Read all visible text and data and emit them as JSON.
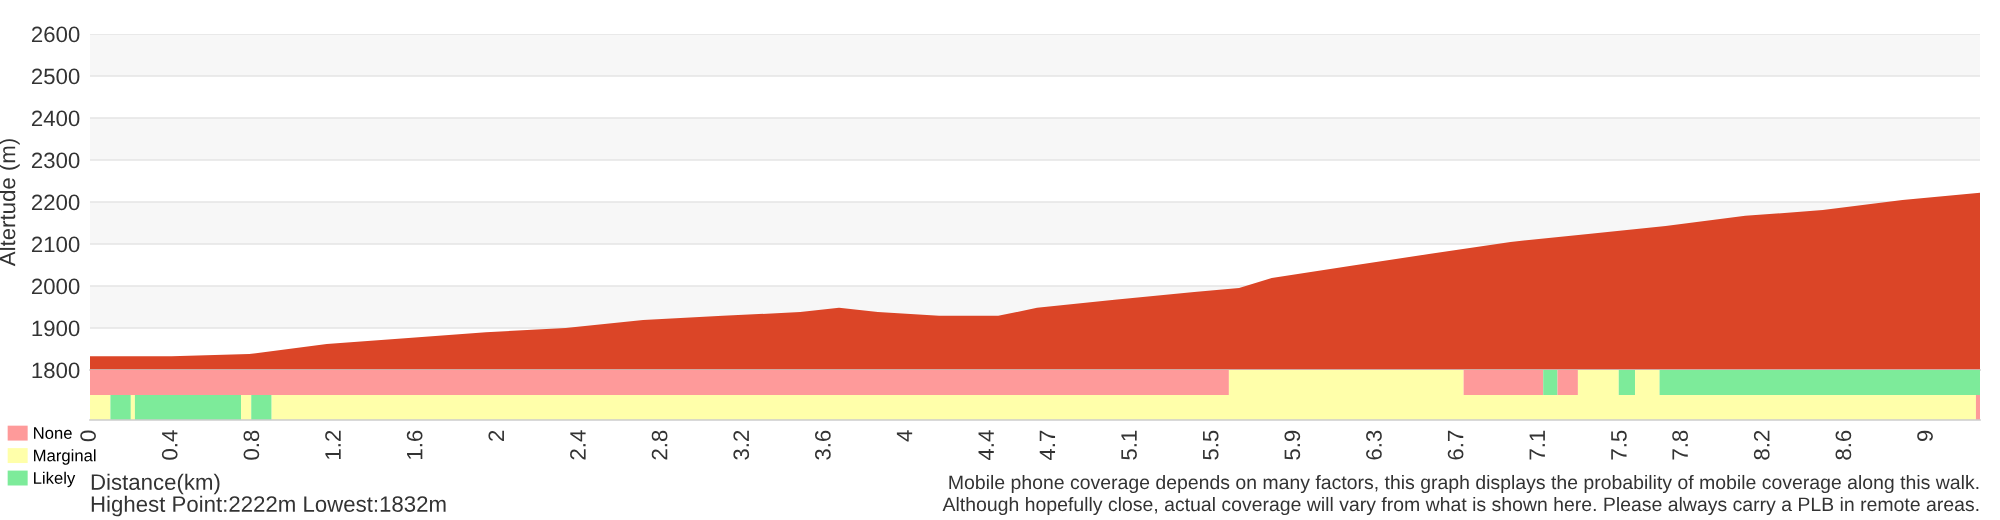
{
  "chart_data": [
    {
      "type": "area",
      "ylabel": "Altertude (m)",
      "grid": "y",
      "tick_labels": "y",
      "x": [
        0,
        0.4,
        0.78,
        1.16,
        1.56,
        1.94,
        2.33,
        2.71,
        3.1,
        3.48,
        3.67,
        3.86,
        4.16,
        4.45,
        4.64,
        5.02,
        5.41,
        5.63,
        5.79,
        6.18,
        6.56,
        6.96,
        7.34,
        7.72,
        8.11,
        8.49,
        8.88,
        9.26
      ],
      "series": [
        {
          "color": "#db4527",
          "values": [
            1833,
            1833,
            1838,
            1862,
            1876,
            1890,
            1900,
            1919,
            1929,
            1938,
            1948,
            1938,
            1929,
            1929,
            1948,
            1967,
            1986,
            1995,
            2019,
            2048,
            2076,
            2105,
            2124,
            2143,
            2167,
            2181,
            2205,
            2222
          ]
        }
      ],
      "xlim": [
        0,
        9.26
      ],
      "ylim": [
        1800,
        2600
      ],
      "yticks": [
        1800,
        1900,
        2000,
        2100,
        2200,
        2300,
        2400,
        2500,
        2600
      ]
    },
    {
      "type": "bar",
      "orientation": "horizontal",
      "stacked": true,
      "categories": [
        null,
        null
      ],
      "xlabel": "Distance(km)",
      "legend": "bottom left",
      "tick_labels": "x",
      "xlim": [
        0,
        9.26
      ],
      "xticks": [
        0,
        0.4,
        0.8,
        1.2,
        1.6,
        2,
        2.4,
        2.8,
        3.2,
        3.6,
        4,
        4.4,
        4.7,
        5.1,
        5.5,
        5.9,
        6.3,
        6.7,
        7.1,
        7.5,
        7.8,
        8.2,
        8.6,
        9
      ],
      "series": [
        {
          "name": "None",
          "color": "#fe9a9a",
          "values": [
            5.58,
            null
          ]
        },
        {
          "name": "Marginal",
          "color": "#ffffaa",
          "values": [
            1.15,
            null
          ]
        },
        {
          "color": "#fe9a9a",
          "values": [
            0.39,
            null
          ]
        },
        {
          "name": "Likely",
          "color": "#7deb9a",
          "values": [
            0.07,
            null
          ]
        },
        {
          "color": "#fe9a9a",
          "values": [
            0.1,
            null
          ]
        },
        {
          "color": "#ffffaa",
          "values": [
            0.2,
            null
          ]
        },
        {
          "color": "#7deb9a",
          "values": [
            0.08,
            null
          ]
        },
        {
          "color": "#ffffaa",
          "values": [
            0.12,
            null
          ]
        },
        {
          "color": "#7deb9a",
          "values": [
            1.57,
            null
          ]
        },
        {
          "color": "#ffffaa",
          "values": [
            null,
            0.1
          ]
        },
        {
          "color": "#7deb9a",
          "values": [
            null,
            0.1
          ]
        },
        {
          "color": "#ffffaa",
          "values": [
            null,
            0.02
          ]
        },
        {
          "color": "#7deb9a",
          "values": [
            null,
            0.52
          ]
        },
        {
          "color": "#ffffaa",
          "values": [
            null,
            0.05
          ]
        },
        {
          "color": "#7deb9a",
          "values": [
            null,
            0.1
          ]
        },
        {
          "color": "#ffffaa",
          "values": [
            null,
            8.35
          ]
        },
        {
          "color": "#fe9a9a",
          "values": [
            null,
            0.02
          ]
        }
      ],
      "annotations": [
        "Highest Point:2222m Lowest:1832m",
        "Mobile phone coverage depends on many factors, this graph displays the probability of mobile coverage along this walk.",
        "Although hopefully close, actual coverage will vary from what is shown here. Please always carry a PLB in remote areas."
      ]
    }
  ]
}
